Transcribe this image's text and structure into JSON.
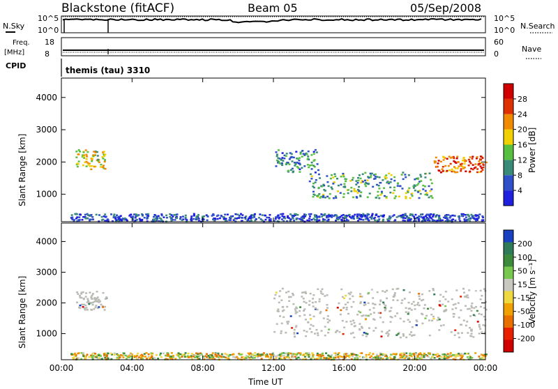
{
  "header": {
    "station": "Blackstone (fitACF)",
    "beam": "Beam 05",
    "date": "05/Sep/2008"
  },
  "status_panel": {
    "nsky_label": "N.Sky",
    "nsky_ticks": [
      "10^5",
      "10^0"
    ],
    "nsearch_label": "N.Search",
    "nsearch_ticks": [
      "10^5",
      "10^0"
    ],
    "freq_label": "Freq.",
    "freq_unit": "[MHz]",
    "freq_ticks": [
      "18",
      "8"
    ],
    "nave_label": "Nave",
    "nave_ticks": [
      "60",
      "0"
    ],
    "cpid_label": "CPID",
    "cpid_value": "themis (tau) 3310"
  },
  "colors": {
    "power_scale": [
      "#1f1fe0",
      "#2f50c8",
      "#3a8a78",
      "#58c040",
      "#f0d000",
      "#f08a00",
      "#e03000",
      "#d00000"
    ],
    "velocity_scale": [
      "#1840c0",
      "#2f7a58",
      "#3c8a3c",
      "#78c850",
      "#c8c8c0",
      "#f0d840",
      "#f0a000",
      "#e87000",
      "#e82000",
      "#d00000"
    ],
    "ground_scatter": "#bbbbb5"
  },
  "chart_data": [
    {
      "type": "heatmap",
      "name": "power",
      "ylabel": "Slant Range [km]",
      "yticks": [
        "1000",
        "2000",
        "3000",
        "4000"
      ],
      "ylim": [
        150,
        4600
      ],
      "xticks": [
        "00:00",
        "04:00",
        "08:00",
        "12:00",
        "16:00",
        "20:00",
        "00:00"
      ],
      "xlim_hours": [
        0,
        24
      ],
      "colorbar_label": "Power [dB]",
      "colorbar_ticks": [
        "4",
        "8",
        "12",
        "16",
        "20",
        "24",
        "28"
      ],
      "regions": [
        {
          "t0": 0.8,
          "t1": 2.5,
          "r0": 1800,
          "r1": 2400,
          "level": 0.55
        },
        {
          "t0": 0.5,
          "t1": 23.9,
          "r0": 180,
          "r1": 420,
          "level": 0.15
        },
        {
          "t0": 12.0,
          "t1": 14.5,
          "r0": 1700,
          "r1": 2400,
          "level": 0.3
        },
        {
          "t0": 14.0,
          "t1": 21.0,
          "r0": 900,
          "r1": 1700,
          "level": 0.35
        },
        {
          "t0": 21.0,
          "t1": 24.0,
          "r0": 1700,
          "r1": 2200,
          "level": 0.75
        }
      ],
      "xlabel": ""
    },
    {
      "type": "heatmap",
      "name": "velocity",
      "ylabel": "Slant Range [km]",
      "yticks": [
        "1000",
        "2000",
        "3000",
        "4000"
      ],
      "ylim": [
        150,
        4600
      ],
      "xticks": [
        "00:00",
        "04:00",
        "08:00",
        "12:00",
        "16:00",
        "20:00",
        "00:00"
      ],
      "xlim_hours": [
        0,
        24
      ],
      "xlabel": "Time UT",
      "colorbar_label": "Velocity [m s⁻¹]",
      "colorbar_ticks": [
        "200",
        "100",
        "50",
        "15",
        "-15",
        "-50",
        "-100",
        "-200"
      ],
      "regions": [
        {
          "t0": 0.8,
          "t1": 2.5,
          "r0": 1800,
          "r1": 2400,
          "kind": "gs"
        },
        {
          "t0": 0.5,
          "t1": 24.0,
          "r0": 180,
          "r1": 400,
          "kind": "mixed"
        },
        {
          "t0": 12.0,
          "t1": 24.0,
          "r0": 900,
          "r1": 2500,
          "kind": "gs"
        }
      ]
    }
  ]
}
